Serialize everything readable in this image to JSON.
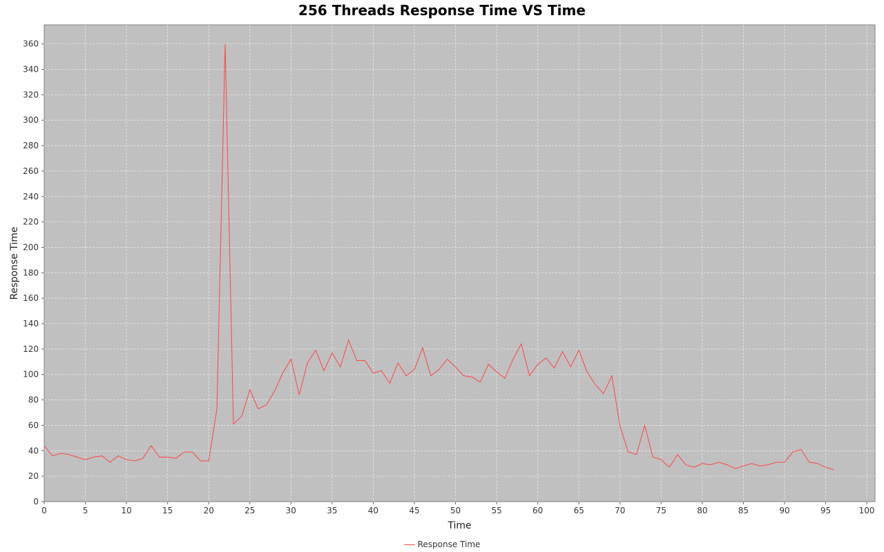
{
  "chart_data": {
    "type": "line",
    "title": "256 Threads Response Time VS Time",
    "xlabel": "Time",
    "ylabel": "Response Time",
    "xlim": [
      0,
      101
    ],
    "ylim": [
      0,
      375
    ],
    "x_ticks": [
      0,
      5,
      10,
      15,
      20,
      25,
      30,
      35,
      40,
      45,
      50,
      55,
      60,
      65,
      70,
      75,
      80,
      85,
      90,
      95,
      100
    ],
    "y_ticks": [
      0,
      20,
      40,
      60,
      80,
      100,
      120,
      140,
      160,
      180,
      200,
      220,
      240,
      260,
      280,
      300,
      320,
      340,
      360
    ],
    "grid": true,
    "legend_position": "bottom",
    "plot_background": "#c0c0c0",
    "series": [
      {
        "name": "Response Time",
        "color": "#ff4444",
        "x": [
          0,
          1,
          2,
          3,
          4,
          5,
          6,
          7,
          8,
          9,
          10,
          11,
          12,
          13,
          14,
          15,
          16,
          17,
          18,
          19,
          20,
          21,
          22,
          23,
          24,
          25,
          26,
          27,
          28,
          29,
          30,
          31,
          32,
          33,
          34,
          35,
          36,
          37,
          38,
          39,
          40,
          41,
          42,
          43,
          44,
          45,
          46,
          47,
          48,
          49,
          50,
          51,
          52,
          53,
          54,
          55,
          56,
          57,
          58,
          59,
          60,
          61,
          62,
          63,
          64,
          65,
          66,
          67,
          68,
          69,
          70,
          71,
          72,
          73,
          74,
          75,
          76,
          77,
          78,
          79,
          80,
          81,
          82,
          83,
          84,
          85,
          86,
          87,
          88,
          89,
          90,
          91,
          92,
          93,
          94,
          95,
          96
        ],
        "values": [
          44,
          36,
          38,
          37,
          35,
          33,
          35,
          36,
          31,
          36,
          33,
          32,
          34,
          44,
          35,
          35,
          34,
          39,
          39,
          32,
          32,
          73,
          360,
          61,
          67,
          88,
          73,
          76,
          87,
          101,
          112,
          84,
          109,
          119,
          103,
          117,
          106,
          127,
          111,
          111,
          101,
          103,
          93,
          109,
          99,
          104,
          121,
          99,
          104,
          112,
          106,
          99,
          98,
          94,
          108,
          102,
          97,
          112,
          124,
          99,
          108,
          113,
          105,
          118,
          106,
          119,
          102,
          92,
          85,
          99,
          59,
          39,
          37,
          60,
          35,
          33,
          27,
          37,
          29,
          27,
          30,
          29,
          31,
          29,
          26,
          28,
          30,
          28,
          29,
          31,
          31,
          39,
          41,
          31,
          30,
          27,
          25
        ]
      }
    ]
  }
}
